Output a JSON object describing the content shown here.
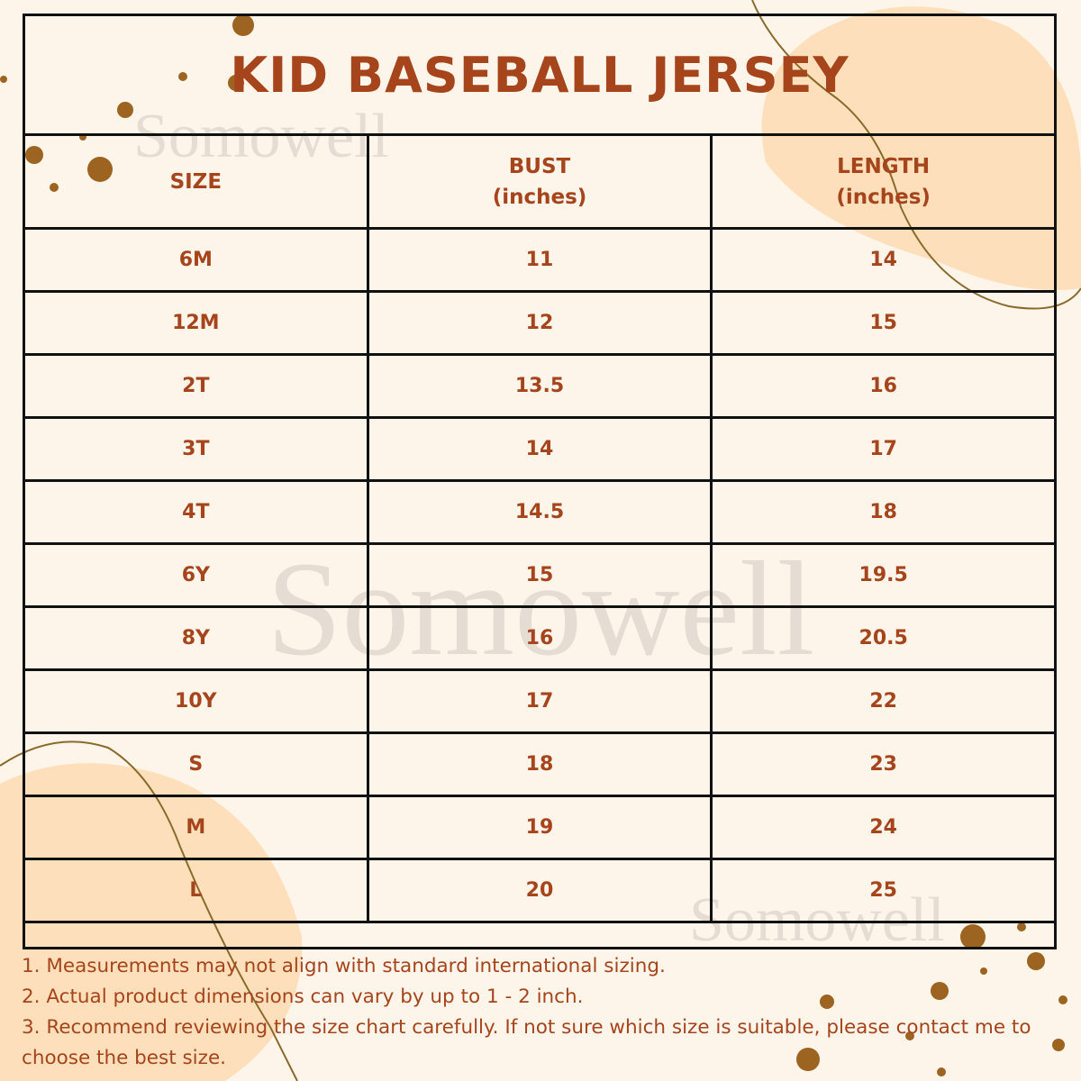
{
  "header": {
    "title": "KID BASEBALL JERSEY"
  },
  "watermarks": [
    "Somowell",
    "Somowell",
    "Somowell"
  ],
  "table": {
    "headers": [
      {
        "text": "SIZE"
      },
      {
        "text": "BUST",
        "unit": "(inches)"
      },
      {
        "text": "LENGTH",
        "unit": "(inches)"
      }
    ],
    "rows": [
      [
        "6M",
        "11",
        "14"
      ],
      [
        "12M",
        "12",
        "15"
      ],
      [
        "2T",
        "13.5",
        "16"
      ],
      [
        "3T",
        "14",
        "17"
      ],
      [
        "4T",
        "14.5",
        "18"
      ],
      [
        "6Y",
        "15",
        "19.5"
      ],
      [
        "8Y",
        "16",
        "20.5"
      ],
      [
        "10Y",
        "17",
        "22"
      ],
      [
        "S",
        "18",
        "23"
      ],
      [
        "M",
        "19",
        "24"
      ],
      [
        "L",
        "20",
        "25"
      ]
    ]
  },
  "notes": [
    "1. Measurements may not align with standard international sizing.",
    "2. Actual product dimensions can vary by up to 1 - 2 inch.",
    "3. Recommend reviewing the size chart carefully. If not sure which size is suitable, please contact me to choose the best size."
  ]
}
